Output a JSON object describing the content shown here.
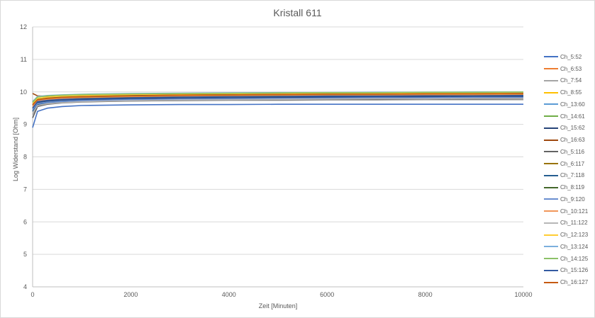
{
  "chart_data": {
    "type": "line",
    "title": "Kristall 611",
    "xlabel": "Zeit [Minuten]",
    "ylabel": "Log Widerstand [Ohm]",
    "xlim": [
      0,
      10000
    ],
    "ylim": [
      4,
      12
    ],
    "x_ticks": [
      "0",
      "2000",
      "4000",
      "6000",
      "8000",
      "10000"
    ],
    "y_ticks": [
      "4",
      "5",
      "6",
      "7",
      "8",
      "9",
      "10",
      "11",
      "12"
    ],
    "grid": "horizontal",
    "legend_position": "right",
    "x": [
      0,
      100,
      300,
      600,
      1000,
      2000,
      3000,
      4000,
      5000,
      6000,
      7000,
      8000,
      9000,
      10000
    ],
    "series": [
      {
        "name": "Ch_5:52",
        "color": "#4472C4",
        "values": [
          8.9,
          9.4,
          9.5,
          9.55,
          9.58,
          9.6,
          9.61,
          9.61,
          9.62,
          9.62,
          9.62,
          9.62,
          9.62,
          9.62
        ]
      },
      {
        "name": "Ch_6:53",
        "color": "#ED7D31",
        "values": [
          9.5,
          9.7,
          9.75,
          9.78,
          9.8,
          9.83,
          9.85,
          9.86,
          9.87,
          9.88,
          9.88,
          9.89,
          9.89,
          9.9
        ]
      },
      {
        "name": "Ch_7:54",
        "color": "#A5A5A5",
        "values": [
          9.3,
          9.6,
          9.65,
          9.68,
          9.7,
          9.72,
          9.73,
          9.74,
          9.74,
          9.75,
          9.75,
          9.76,
          9.76,
          9.76
        ]
      },
      {
        "name": "Ch_8:55",
        "color": "#FFC000",
        "values": [
          9.6,
          9.75,
          9.8,
          9.84,
          9.87,
          9.9,
          9.92,
          9.93,
          9.94,
          9.95,
          9.95,
          9.96,
          9.96,
          9.97
        ]
      },
      {
        "name": "Ch_13:60",
        "color": "#5B9BD5",
        "values": [
          9.4,
          9.65,
          9.7,
          9.73,
          9.75,
          9.78,
          9.8,
          9.81,
          9.82,
          9.83,
          9.83,
          9.84,
          9.84,
          9.85
        ]
      },
      {
        "name": "Ch_14:61",
        "color": "#70AD47",
        "values": [
          9.7,
          9.85,
          9.88,
          9.9,
          9.92,
          9.94,
          9.95,
          9.96,
          9.97,
          9.97,
          9.98,
          9.98,
          9.99,
          9.99
        ]
      },
      {
        "name": "Ch_15:62",
        "color": "#264478",
        "values": [
          9.5,
          9.68,
          9.72,
          9.75,
          9.77,
          9.8,
          9.81,
          9.82,
          9.83,
          9.84,
          9.84,
          9.85,
          9.85,
          9.86
        ]
      },
      {
        "name": "Ch_16:63",
        "color": "#9E480E",
        "values": [
          9.95,
          9.88,
          9.86,
          9.86,
          9.87,
          9.88,
          9.89,
          9.9,
          9.9,
          9.91,
          9.91,
          9.92,
          9.92,
          9.92
        ]
      },
      {
        "name": "Ch_5:116",
        "color": "#636363",
        "values": [
          9.2,
          9.55,
          9.62,
          9.66,
          9.69,
          9.72,
          9.74,
          9.75,
          9.76,
          9.77,
          9.77,
          9.78,
          9.78,
          9.79
        ]
      },
      {
        "name": "Ch_6:117",
        "color": "#997300",
        "values": [
          9.5,
          9.7,
          9.74,
          9.77,
          9.8,
          9.83,
          9.85,
          9.86,
          9.87,
          9.88,
          9.88,
          9.89,
          9.89,
          9.9
        ]
      },
      {
        "name": "Ch_7:118",
        "color": "#255E91",
        "values": [
          9.4,
          9.62,
          9.67,
          9.7,
          9.73,
          9.76,
          9.78,
          9.79,
          9.8,
          9.81,
          9.81,
          9.82,
          9.82,
          9.83
        ]
      },
      {
        "name": "Ch_8:119",
        "color": "#43682B",
        "values": [
          9.6,
          9.78,
          9.82,
          9.85,
          9.87,
          9.89,
          9.9,
          9.91,
          9.92,
          9.93,
          9.93,
          9.94,
          9.94,
          9.95
        ]
      },
      {
        "name": "Ch_9:120",
        "color": "#698ED0",
        "values": [
          9.45,
          9.64,
          9.68,
          9.71,
          9.73,
          9.76,
          9.78,
          9.79,
          9.8,
          9.81,
          9.82,
          9.82,
          9.83,
          9.83
        ]
      },
      {
        "name": "Ch_10:121",
        "color": "#F1975A",
        "values": [
          9.55,
          9.73,
          9.77,
          9.8,
          9.83,
          9.86,
          9.88,
          9.89,
          9.9,
          9.91,
          9.91,
          9.92,
          9.92,
          9.93
        ]
      },
      {
        "name": "Ch_11:122",
        "color": "#B7B7B7",
        "values": [
          9.35,
          9.58,
          9.64,
          9.67,
          9.7,
          9.73,
          9.75,
          9.76,
          9.77,
          9.78,
          9.79,
          9.79,
          9.8,
          9.8
        ]
      },
      {
        "name": "Ch_12:123",
        "color": "#FFCD33",
        "values": [
          9.65,
          9.8,
          9.84,
          9.87,
          9.89,
          9.92,
          9.94,
          9.95,
          9.96,
          9.97,
          9.97,
          9.98,
          9.98,
          9.99
        ]
      },
      {
        "name": "Ch_13:124",
        "color": "#7CAFDD",
        "values": [
          9.7,
          9.86,
          9.89,
          9.91,
          9.93,
          9.95,
          9.96,
          9.97,
          9.98,
          9.98,
          9.99,
          9.99,
          10.0,
          10.0
        ]
      },
      {
        "name": "Ch_14:125",
        "color": "#8CC168",
        "values": [
          9.68,
          9.84,
          9.88,
          9.9,
          9.92,
          9.94,
          9.95,
          9.96,
          9.97,
          9.98,
          9.98,
          9.99,
          9.99,
          10.0
        ]
      },
      {
        "name": "Ch_15:126",
        "color": "#335AA1",
        "values": [
          9.5,
          9.7,
          9.74,
          9.77,
          9.79,
          9.82,
          9.84,
          9.85,
          9.86,
          9.87,
          9.87,
          9.88,
          9.88,
          9.89
        ]
      },
      {
        "name": "Ch_16:127",
        "color": "#C55A11",
        "values": [
          9.6,
          9.76,
          9.8,
          9.83,
          9.85,
          9.88,
          9.9,
          9.91,
          9.92,
          9.93,
          9.93,
          9.94,
          9.94,
          9.95
        ]
      }
    ]
  }
}
